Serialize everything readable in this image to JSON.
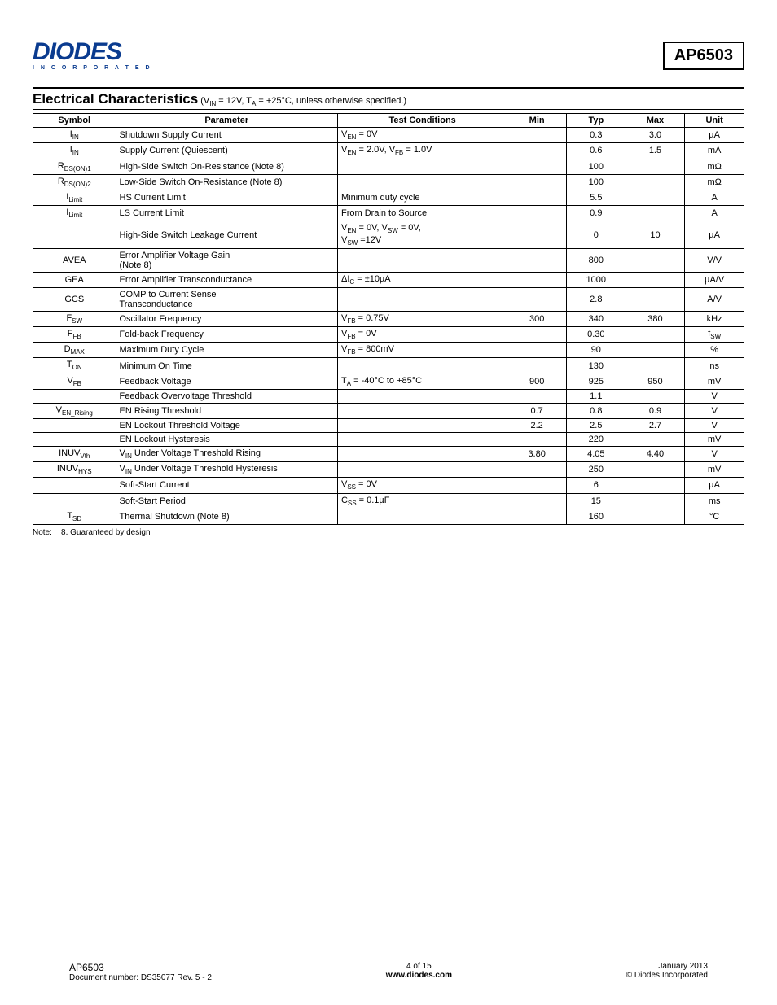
{
  "header": {
    "logo_text": "DIODES",
    "logo_sub": "I N C O R P O R A T E D",
    "part_number": "AP6503"
  },
  "section": {
    "title": "Electrical Characteristics",
    "conditions": " (V",
    "conditions_sub1": "IN",
    "conditions_mid": " = 12V, T",
    "conditions_sub2": "A",
    "conditions_end": " = +25°C, unless otherwise specified.)"
  },
  "columns": [
    "Symbol",
    "Parameter",
    "Test Conditions",
    "Min",
    "Typ",
    "Max",
    "Unit"
  ],
  "rows": [
    {
      "sym_pre": "I",
      "sym_sub": "IN",
      "param": "Shutdown Supply Current",
      "cond_html": "V<sub>EN</sub> = 0V",
      "min": "",
      "typ": "0.3",
      "max": "3.0",
      "unit": "µA"
    },
    {
      "sym_pre": "I",
      "sym_sub": "IN",
      "param": "Supply Current (Quiescent)",
      "cond_html": "V<sub>EN</sub> = 2.0V, V<sub>FB</sub> = 1.0V",
      "min": "",
      "typ": "0.6",
      "max": "1.5",
      "unit": "mA"
    },
    {
      "sym_pre": "R",
      "sym_sub": "DS(ON)1",
      "param": "High-Side Switch On-Resistance (Note 8)",
      "cond_html": "",
      "min": "",
      "typ": "100",
      "max": "",
      "unit": "mΩ"
    },
    {
      "sym_pre": "R",
      "sym_sub": "DS(ON)2",
      "param": "Low-Side Switch On-Resistance (Note 8)",
      "cond_html": "",
      "min": "",
      "typ": "100",
      "max": "",
      "unit": "mΩ"
    },
    {
      "sym_pre": "I",
      "sym_sub": "Limit",
      "param": "HS Current Limit",
      "cond_html": "Minimum duty cycle",
      "min": "",
      "typ": "5.5",
      "max": "",
      "unit": "A"
    },
    {
      "sym_pre": "I",
      "sym_sub": "Limit",
      "param": "LS Current Limit",
      "cond_html": "From Drain to Source",
      "min": "",
      "typ": "0.9",
      "max": "",
      "unit": "A"
    },
    {
      "sym_pre": "",
      "sym_sub": "",
      "param": "High-Side Switch Leakage Current",
      "cond_html": "V<sub>EN</sub> = 0V, V<sub>SW</sub> = 0V,<br>V<sub>SW</sub> =12V",
      "min": "",
      "typ": "0",
      "max": "10",
      "unit": "µA"
    },
    {
      "sym_pre": "AVEA",
      "sym_sub": "",
      "param": "Error Amplifier Voltage Gain<br>(Note 8)",
      "cond_html": "",
      "min": "",
      "typ": "800",
      "max": "",
      "unit": "V/V"
    },
    {
      "sym_pre": "GEA",
      "sym_sub": "",
      "param": "Error Amplifier Transconductance",
      "cond_html": "ΔI<sub>C</sub> = ±10µA",
      "min": "",
      "typ": "1000",
      "max": "",
      "unit": "µA/V"
    },
    {
      "sym_pre": "GCS",
      "sym_sub": "",
      "param": "COMP to Current Sense<br>Transconductance",
      "cond_html": "",
      "min": "",
      "typ": "2.8",
      "max": "",
      "unit": "A/V"
    },
    {
      "sym_pre": "F",
      "sym_sub": "SW",
      "param": "Oscillator Frequency",
      "cond_html": "V<sub>FB</sub> = 0.75V",
      "min": "300",
      "typ": "340",
      "max": "380",
      "unit": "kHz"
    },
    {
      "sym_pre": "F",
      "sym_sub": "FB",
      "param": "Fold-back Frequency",
      "cond_html": "V<sub>FB</sub> = 0V",
      "min": "",
      "typ": "0.30",
      "max": "",
      "unit_html": "f<sub>SW</sub>"
    },
    {
      "sym_pre": "D",
      "sym_sub": "MAX",
      "param": "Maximum Duty Cycle",
      "cond_html": "V<sub>FB</sub> = 800mV",
      "min": "",
      "typ": "90",
      "max": "",
      "unit": "%"
    },
    {
      "sym_pre": "T",
      "sym_sub": "ON",
      "param": "Minimum On Time",
      "cond_html": "",
      "min": "",
      "typ": "130",
      "max": "",
      "unit": "ns"
    },
    {
      "sym_pre": "V",
      "sym_sub": "FB",
      "param": "Feedback  Voltage",
      "cond_html": "T<sub>A</sub> = -40°C to +85°C",
      "min": "900",
      "typ": "925",
      "max": "950",
      "unit": "mV"
    },
    {
      "sym_pre": "",
      "sym_sub": "",
      "param": "Feedback Overvoltage Threshold",
      "cond_html": "",
      "min": "",
      "typ": "1.1",
      "max": "",
      "unit": "V"
    },
    {
      "sym_pre": "V",
      "sym_sub": "EN_Rising",
      "param": "EN Rising Threshold",
      "cond_html": "",
      "min": "0.7",
      "typ": "0.8",
      "max": "0.9",
      "unit": "V"
    },
    {
      "sym_pre": "",
      "sym_sub": "",
      "param": "EN Lockout Threshold Voltage",
      "cond_html": "",
      "min": "2.2",
      "typ": "2.5",
      "max": "2.7",
      "unit": "V"
    },
    {
      "sym_pre": "",
      "sym_sub": "",
      "param": "EN Lockout Hysteresis",
      "cond_html": "",
      "min": "",
      "typ": "220",
      "max": "",
      "unit": "mV"
    },
    {
      "sym_pre": "INUV",
      "sym_sub": "Vth",
      "param_html": "V<sub>IN</sub> Under Voltage Threshold Rising",
      "cond_html": "",
      "min": "3.80",
      "typ": "4.05",
      "max": "4.40",
      "unit": "V"
    },
    {
      "sym_pre": "INUV",
      "sym_sub": "HYS",
      "param_html": "V<sub>IN</sub> Under Voltage Threshold Hysteresis",
      "cond_html": "",
      "min": "",
      "typ": "250",
      "max": "",
      "unit": "mV"
    },
    {
      "sym_pre": "",
      "sym_sub": "",
      "param": "Soft-Start Current",
      "cond_html": "V<sub>SS</sub> = 0V",
      "min": "",
      "typ": "6",
      "max": "",
      "unit": "µA"
    },
    {
      "sym_pre": "",
      "sym_sub": "",
      "param": "Soft-Start Period",
      "cond_html": "C<sub>SS</sub> = 0.1µF",
      "min": "",
      "typ": "15",
      "max": "",
      "unit": "ms"
    },
    {
      "sym_pre": "T",
      "sym_sub": "SD",
      "param": "Thermal Shutdown (Note 8)",
      "cond_html": "",
      "min": "",
      "typ": "160",
      "max": "",
      "unit": "°C"
    }
  ],
  "note": {
    "label": "Note:",
    "num": "8.",
    "text": "Guaranteed by design"
  },
  "footer": {
    "part": "AP6503",
    "doc": "Document number: DS35077  Rev. 5 - 2",
    "page": "4 of 15",
    "url": "www.diodes.com",
    "date": "January 2013",
    "copyright": "© Diodes Incorporated"
  }
}
